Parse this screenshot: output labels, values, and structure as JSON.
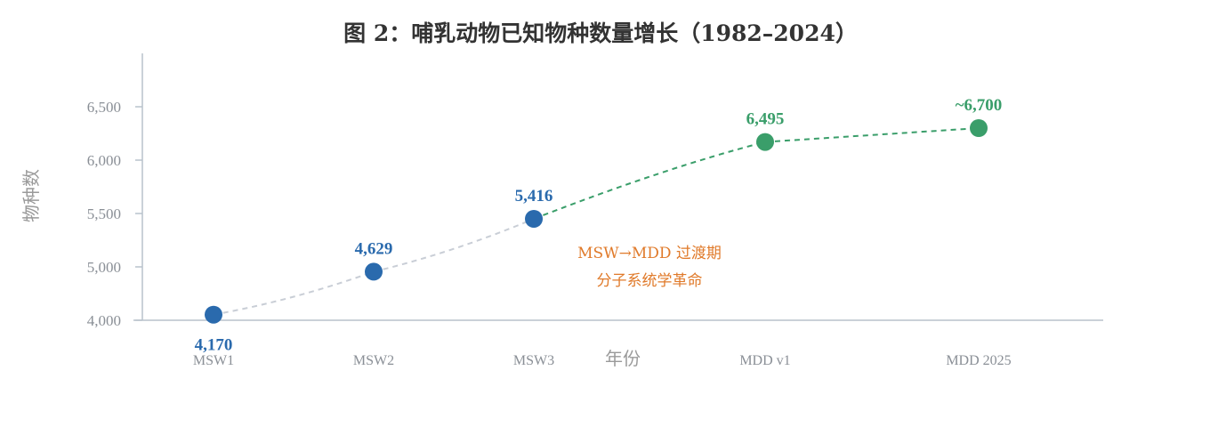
{
  "chart_data": {
    "type": "line",
    "title": "图 2：哺乳动物已知物种数量增长（1982–2024）",
    "xlabel": "年份",
    "ylabel": "物种数",
    "categories": [
      "MSW1",
      "MSW2",
      "MSW3",
      "MDD v1",
      "MDD 2025"
    ],
    "y_ticks": [
      "4,000",
      "5,000",
      "5,500",
      "6,000",
      "6,500"
    ],
    "ylim": [
      4000,
      7000
    ],
    "grid": false,
    "series": [
      {
        "values": [
          4170,
          4629,
          5416,
          6495,
          6700
        ],
        "plotted_levels": [
          4105,
          4910,
          5450,
          6170,
          6300
        ],
        "labels": [
          "4,170",
          "4,629",
          "5,416",
          "6,495",
          "~6,700"
        ],
        "point_colors": [
          "#2a6aad",
          "#2a6aad",
          "#2a6aad",
          "#3a9e6a",
          "#3a9e6a"
        ],
        "segment_styles": [
          "grey-dashed",
          "grey-dashed",
          "green-dashed",
          "green-dashed"
        ]
      }
    ],
    "annotation": {
      "lines": [
        "MSW→MDD 过渡期",
        "分子系统学革命"
      ],
      "color": "#e07a2a"
    },
    "colors": {
      "msw": "#2a6aad",
      "mdd": "#3a9e6a",
      "grey_line": "#c9ced6",
      "axis": "#b9c2cc",
      "annotation": "#e07a2a"
    }
  }
}
